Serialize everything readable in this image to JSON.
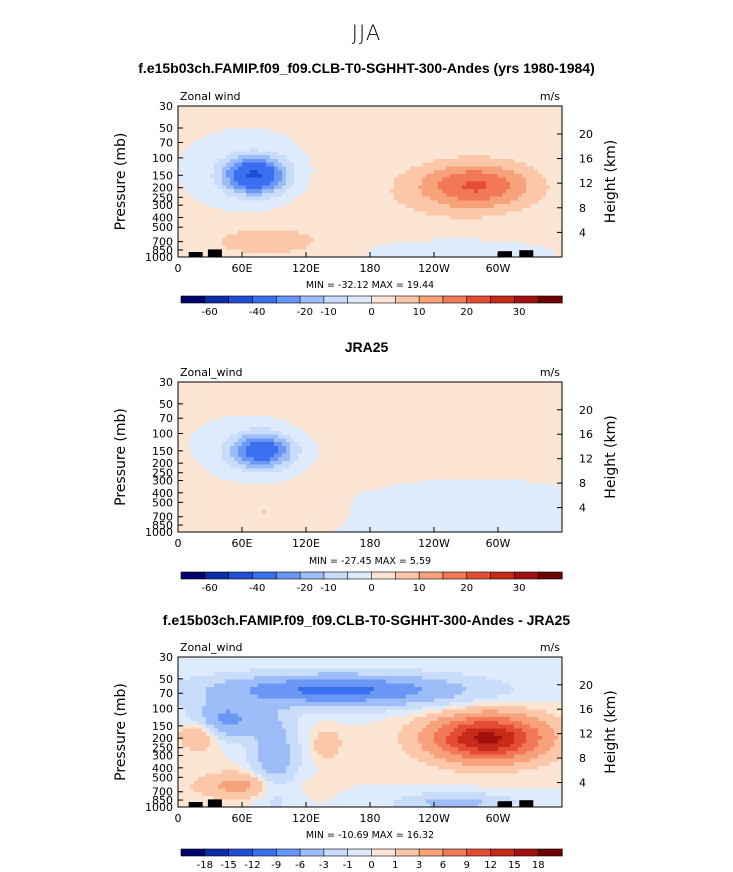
{
  "page": {
    "title": "JJA"
  },
  "colors": {
    "blues": [
      "#00006e",
      "#0a2ea8",
      "#1f4fd6",
      "#3a6ff0",
      "#6a96f6",
      "#9dbdf8",
      "#c9ddfb",
      "#deebfd"
    ],
    "reds": [
      "#fde5d3",
      "#fcc7a8",
      "#f8a27c",
      "#f27858",
      "#e44d33",
      "#c82a1a",
      "#a31010",
      "#6e0000"
    ],
    "fill": "#000000"
  },
  "chart_data": [
    {
      "type": "heatmap",
      "title": "f.e15b03ch.FAMIP.f09_f09.CLB-T0-SGHHT-300-Andes (yrs 1980-1984)",
      "variable_label": "Zonal wind",
      "units_label": "m/s",
      "ylabel": "Pressure (mb)",
      "ylabel_right": "Height (km)",
      "x_ticks": [
        "0",
        "60E",
        "120E",
        "180",
        "120W",
        "60W"
      ],
      "y_ticks": [
        "30",
        "50",
        "70",
        "100",
        "150",
        "200",
        "250",
        "300",
        "400",
        "500",
        "700",
        "850",
        "1000"
      ],
      "height_ticks": [
        "20",
        "16",
        "12",
        "8",
        "4"
      ],
      "min_max_text": "MIN = -32.12   MAX =  19.44",
      "min": -32.12,
      "max": 19.44,
      "colorbar_ticks": [
        "-60",
        "-40",
        "-20",
        "-10",
        "0",
        "10",
        "20",
        "30"
      ],
      "features": [
        {
          "kind": "jet",
          "sign": "negative",
          "lon": 70,
          "p": 150,
          "peak": -32
        },
        {
          "kind": "jet",
          "sign": "positive",
          "lon": 275,
          "p": 200,
          "peak": 19
        }
      ]
    },
    {
      "type": "heatmap",
      "title": "JRA25",
      "variable_label": "Zonal_wind",
      "units_label": "m/s",
      "ylabel": "Pressure (mb)",
      "ylabel_right": "Height (km)",
      "x_ticks": [
        "0",
        "60E",
        "120E",
        "180",
        "120W",
        "60W"
      ],
      "y_ticks": [
        "30",
        "50",
        "70",
        "100",
        "150",
        "200",
        "250",
        "300",
        "400",
        "500",
        "700",
        "850",
        "1000"
      ],
      "height_ticks": [
        "20",
        "16",
        "12",
        "8",
        "4"
      ],
      "min_max_text": "MIN = -27.45   MAX =   5.59",
      "min": -27.45,
      "max": 5.59,
      "colorbar_ticks": [
        "-60",
        "-40",
        "-20",
        "-10",
        "0",
        "10",
        "20",
        "30"
      ],
      "features": [
        {
          "kind": "jet",
          "sign": "negative",
          "lon": 75,
          "p": 150,
          "peak": -27
        },
        {
          "kind": "band",
          "sign": "positive",
          "p": 70,
          "peak": 5
        }
      ]
    },
    {
      "type": "heatmap",
      "title": "f.e15b03ch.FAMIP.f09_f09.CLB-T0-SGHHT-300-Andes - JRA25",
      "variable_label": "Zonal_wind",
      "units_label": "m/s",
      "ylabel": "Pressure (mb)",
      "ylabel_right": "Height (km)",
      "x_ticks": [
        "0",
        "60E",
        "120E",
        "180",
        "120W",
        "60W"
      ],
      "y_ticks": [
        "30",
        "50",
        "70",
        "100",
        "150",
        "200",
        "250",
        "300",
        "400",
        "500",
        "700",
        "850",
        "1000"
      ],
      "height_ticks": [
        "20",
        "16",
        "12",
        "8",
        "4"
      ],
      "min_max_text": "MIN = -10.69   MAX =  16.32",
      "min": -10.69,
      "max": 16.32,
      "colorbar_ticks": [
        "-18",
        "-15",
        "-12",
        "-9",
        "-6",
        "-3",
        "-1",
        "0",
        "1",
        "3",
        "6",
        "9",
        "12",
        "15",
        "18"
      ],
      "features": [
        {
          "kind": "band",
          "sign": "negative",
          "p": 70,
          "peak": -10
        },
        {
          "kind": "jet",
          "sign": "positive",
          "lon": 285,
          "p": 200,
          "peak": 16
        }
      ]
    }
  ]
}
